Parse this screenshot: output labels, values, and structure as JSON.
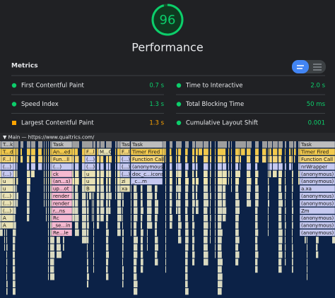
{
  "score": {
    "value": 96,
    "title": "Performance",
    "color": "#0cce6b"
  },
  "metrics": {
    "title": "Metrics",
    "items": [
      {
        "name": "First Contentful Paint",
        "value": "0.7 s",
        "color": "#0cce6b",
        "shape": "circle"
      },
      {
        "name": "Time to Interactive",
        "value": "2.0 s",
        "color": "#0cce6b",
        "shape": "circle"
      },
      {
        "name": "Speed Index",
        "value": "1.3 s",
        "color": "#0cce6b",
        "shape": "circle"
      },
      {
        "name": "Total Blocking Time",
        "value": "50 ms",
        "color": "#0cce6b",
        "shape": "circle"
      },
      {
        "name": "Largest Contentful Paint",
        "value": "1.3 s",
        "color": "#ffa400",
        "shape": "square"
      },
      {
        "name": "Cumulative Layout Shift",
        "value": "0.001",
        "color": "#0cce6b",
        "shape": "circle"
      }
    ]
  },
  "flame_chart": {
    "header": "▼ Main — https://www.qualtrics.com/",
    "columns": [
      {
        "labels": [
          "T...k",
          "T...d",
          "F...l",
          "(...)",
          "(...)",
          "u",
          "u",
          "(...)",
          "(...)",
          "(...)",
          "A",
          "A"
        ]
      },
      {
        "labels": [
          "Task",
          "An...ed",
          "Fun...ll",
          "(...)",
          "ck",
          "(an...s)",
          "up...ot",
          "render",
          "render",
          "r...ns",
          "Rc",
          "_se...in",
          "Re...le"
        ]
      },
      {
        "labels": [
          "F...l",
          "(...)",
          "(...)",
          "u",
          "u",
          "B"
        ]
      },
      {
        "labels": [
          "M...C"
        ]
      },
      {
        "labels": [
          "Task",
          "F...l",
          "(...)",
          "(...)",
          "(...)",
          "zi",
          "xa"
        ]
      },
      {
        "labels": [
          "Task",
          "Timer Fired",
          "Function Call",
          "(anonymous)",
          "doc_c...icons",
          "_c...m"
        ]
      },
      {
        "labels": [
          "Task",
          "Timer Fired",
          "Function Call",
          "nrWrapper",
          "(anonymous)",
          "(anonymous)",
          "a.xa",
          "(anonymous)",
          "(anonymous)",
          "Zm",
          "(anonymous)",
          "(anonymous)",
          "(anonymous)"
        ]
      }
    ]
  }
}
